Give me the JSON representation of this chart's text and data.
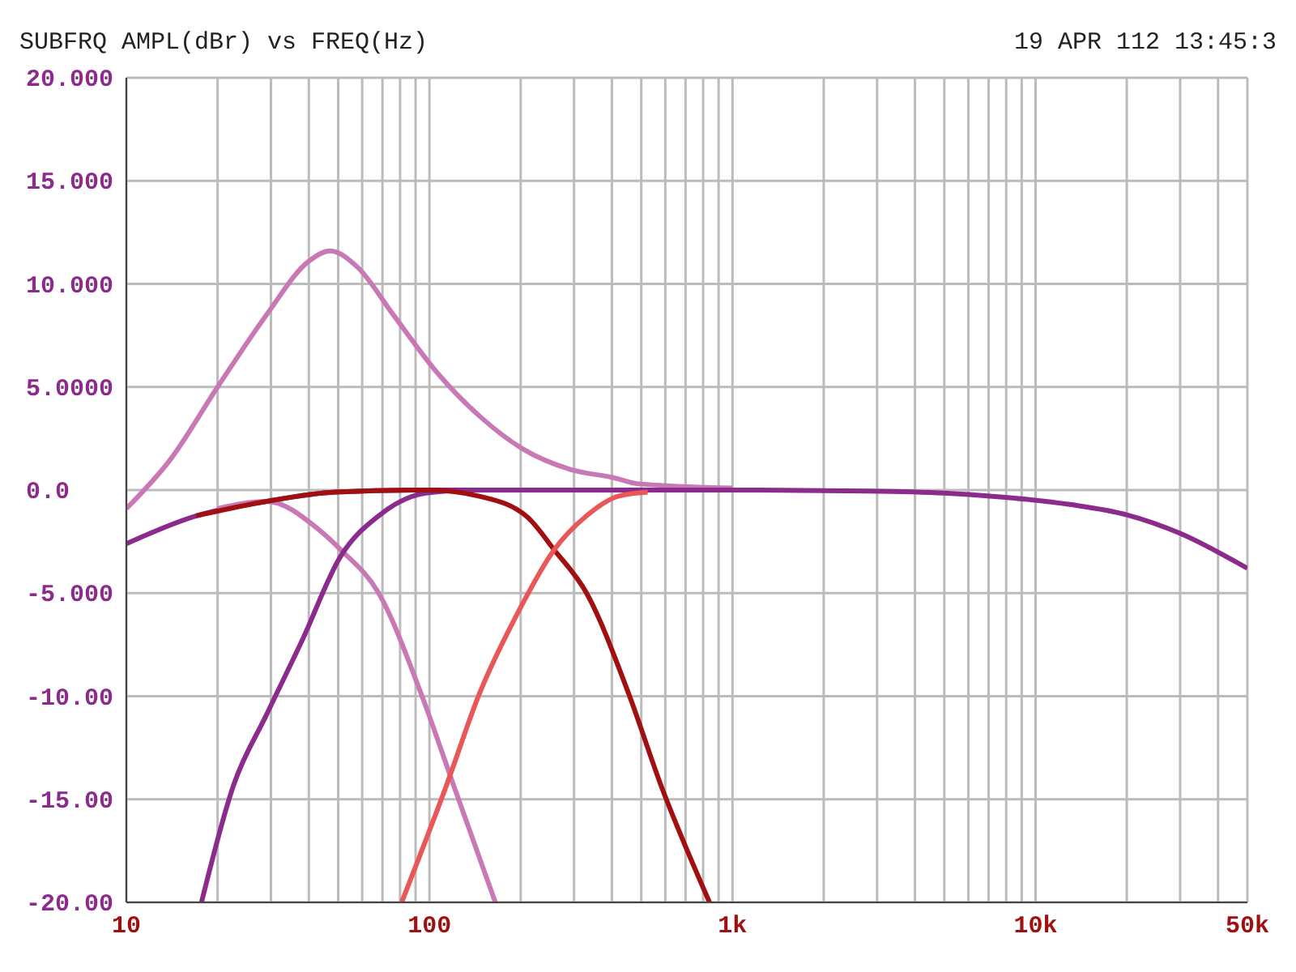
{
  "chart_data": {
    "type": "line",
    "title": "SUBFRQ AMPL(dBr) vs FREQ(Hz)",
    "annotations": [
      "19 APR 112 13:45:3"
    ],
    "xlim": [
      10,
      50000
    ],
    "xticks": [
      10,
      {
        "value": 20,
        "label": null
      },
      {
        "value": 30,
        "label": null
      },
      {
        "value": 40,
        "label": null
      },
      {
        "value": 50,
        "label": null
      },
      {
        "value": 60,
        "label": null
      },
      {
        "value": 70,
        "label": null
      },
      {
        "value": 80,
        "label": null
      },
      {
        "value": 90,
        "label": null
      },
      100,
      {
        "value": 200,
        "label": null
      },
      {
        "value": 300,
        "label": null
      },
      {
        "value": 400,
        "label": null
      },
      {
        "value": 500,
        "label": null
      },
      {
        "value": 600,
        "label": null
      },
      {
        "value": 700,
        "label": null
      },
      {
        "value": 800,
        "label": null
      },
      {
        "value": 900,
        "label": null
      },
      {
        "value": 1000,
        "label": "1k"
      },
      {
        "value": 2000,
        "label": null
      },
      {
        "value": 3000,
        "label": null
      },
      {
        "value": 4000,
        "label": null
      },
      {
        "value": 5000,
        "label": null
      },
      {
        "value": 6000,
        "label": null
      },
      {
        "value": 7000,
        "label": null
      },
      {
        "value": 8000,
        "label": null
      },
      {
        "value": 9000,
        "label": null
      },
      {
        "value": 10000,
        "label": "10k"
      },
      {
        "value": 20000,
        "label": null
      },
      {
        "value": 30000,
        "label": null
      },
      {
        "value": 40000,
        "label": null
      },
      {
        "value": 50000,
        "label": "50k"
      }
    ],
    "ylim": [
      -20,
      20
    ],
    "yticks": [
      {
        "value": -20,
        "label": "-20.00"
      },
      {
        "value": -15,
        "label": "-15.00"
      },
      {
        "value": -10,
        "label": "-10.00"
      },
      {
        "value": -5,
        "label": "-5.000"
      },
      {
        "value": 0,
        "label": "0.0"
      },
      {
        "value": 5,
        "label": "5.0000"
      },
      {
        "value": 10,
        "label": "10.000"
      },
      {
        "value": 15,
        "label": "15.000"
      },
      {
        "value": 20,
        "label": "20.000"
      }
    ],
    "log": "x",
    "grid": true,
    "legend": false,
    "marker": "none",
    "line_style": "solid",
    "series": [
      {
        "color": "#c878b4",
        "x": [
          10,
          14,
          20,
          29,
          40,
          47,
          58,
          76,
          106,
          146,
          203,
          292,
          405,
          490,
          1000
        ],
        "values": [
          -0.9,
          1.5,
          5.0,
          8.5,
          11.1,
          11.6,
          10.8,
          8.5,
          5.7,
          3.6,
          2.0,
          1.0,
          0.6,
          0.3,
          0.1
        ]
      },
      {
        "color": "#8b2b8b",
        "x": [
          10,
          17,
          29,
          49,
          100,
          1000,
          2800,
          5000,
          7200,
          13000,
          20000,
          30000,
          50000
        ],
        "values": [
          -2.6,
          -1.25,
          -0.55,
          -0.1,
          0,
          0,
          -0.05,
          -0.15,
          -0.3,
          -0.7,
          -1.2,
          -2.1,
          -3.8
        ]
      },
      {
        "color": "#c878b4",
        "x": [
          20,
          29,
          43,
          51,
          68,
          94,
          120,
          165
        ],
        "values": [
          -0.9,
          -0.55,
          -1.9,
          -2.9,
          -5.0,
          -9.9,
          -14.3,
          -20
        ]
      },
      {
        "color": "#8b2b8b",
        "x": [
          17.7,
          22.6,
          29,
          38,
          51,
          68,
          97,
          137,
          300
        ],
        "values": [
          -20,
          -14.3,
          -10.9,
          -7.3,
          -3.2,
          -1.25,
          -0.15,
          0,
          0
        ]
      },
      {
        "color": "#a01010",
        "x": [
          17,
          29,
          49,
          100,
          146,
          210,
          258,
          330,
          455,
          580,
          840
        ],
        "values": [
          -1.25,
          -0.55,
          -0.1,
          0,
          -0.3,
          -1.3,
          -2.9,
          -5.0,
          -9.9,
          -14.3,
          -20
        ]
      },
      {
        "color": "#e85858",
        "x": [
          81,
          114,
          146,
          195,
          258,
          330,
          420,
          525
        ],
        "values": [
          -20,
          -14.3,
          -9.9,
          -6.0,
          -2.9,
          -1.25,
          -0.3,
          -0.1
        ]
      }
    ]
  }
}
